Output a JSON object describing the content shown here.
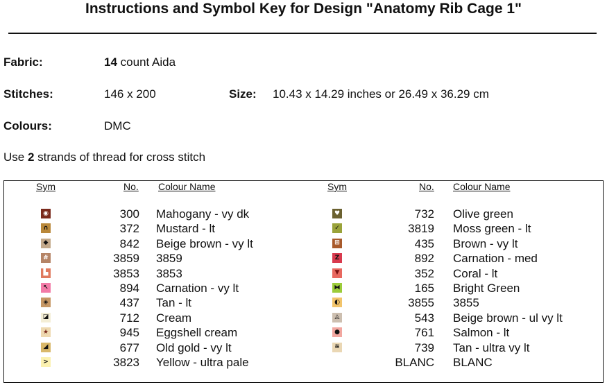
{
  "title": "Instructions and Symbol Key for Design \"Anatomy Rib Cage 1\"",
  "fabric": {
    "label": "Fabric:",
    "count": "14",
    "value": "count Aida"
  },
  "stitches": {
    "label": "Stitches:",
    "value": "146 x 200"
  },
  "size": {
    "label": "Size:",
    "value": "10.43 x 14.29 inches or 26.49 x 36.29 cm"
  },
  "colours": {
    "label": "Colours:",
    "value": "DMC"
  },
  "strands": {
    "pre": "Use",
    "count": "2",
    "post": "strands of thread for cross stitch"
  },
  "headers": {
    "sym": "Sym",
    "no": "No.",
    "name": "Colour Name"
  },
  "left_rows": [
    {
      "color": "#7a2a1c",
      "glyph": "◉",
      "glyph_color": "#ffffff",
      "no": "300",
      "name": "Mahogany -  vy dk"
    },
    {
      "color": "#b9883a",
      "glyph": "∩",
      "glyph_color": "#111111",
      "no": "372",
      "name": "Mustard -  lt"
    },
    {
      "color": "#c3a98b",
      "glyph": "◆",
      "glyph_color": "#111111",
      "no": "842",
      "name": "Beige brown -  vy lt"
    },
    {
      "color": "#b58466",
      "glyph": "#",
      "glyph_color": "#ffffff",
      "no": "3859",
      "name": "3859"
    },
    {
      "color": "#e07a5f",
      "glyph": "▙",
      "glyph_color": "#ffffff",
      "no": "3853",
      "name": "3853"
    },
    {
      "color": "#f27ba7",
      "glyph": "↖",
      "glyph_color": "#111111",
      "no": "894",
      "name": "Carnation -  vy lt"
    },
    {
      "color": "#c69764",
      "glyph": "◈",
      "glyph_color": "#111111",
      "no": "437",
      "name": "Tan -  lt"
    },
    {
      "color": "#f4eed6",
      "glyph": "◪",
      "glyph_color": "#111111",
      "no": "712",
      "name": "Cream"
    },
    {
      "color": "#eed9b0",
      "glyph": "★",
      "glyph_color": "#7a2a1c",
      "no": "945",
      "name": "Eggshell cream"
    },
    {
      "color": "#d9b86a",
      "glyph": "◢",
      "glyph_color": "#111111",
      "no": "677",
      "name": "Old gold -  vy lt"
    },
    {
      "color": "#fbf1b0",
      "glyph": ">",
      "glyph_color": "#111111",
      "no": "3823",
      "name": "Yellow -  ultra pale"
    }
  ],
  "right_rows": [
    {
      "color": "#6b6130",
      "glyph": "♥",
      "glyph_color": "#ffffff",
      "no": "732",
      "name": "Olive green"
    },
    {
      "color": "#9aa33a",
      "glyph": "✓",
      "glyph_color": "#111111",
      "no": "3819",
      "name": "Moss green -  lt"
    },
    {
      "color": "#a85a2c",
      "glyph": "⊞",
      "glyph_color": "#ffffff",
      "no": "435",
      "name": "Brown -  vy lt"
    },
    {
      "color": "#d93a4e",
      "glyph": "Z",
      "glyph_color": "#111111",
      "no": "892",
      "name": "Carnation -  med"
    },
    {
      "color": "#e8685f",
      "glyph": "▼",
      "glyph_color": "#7a1010",
      "no": "352",
      "name": "Coral -  lt"
    },
    {
      "color": "#9ccc3a",
      "glyph": "⧓",
      "glyph_color": "#111111",
      "no": "165",
      "name": "Bright Green"
    },
    {
      "color": "#f2c46b",
      "glyph": "◐",
      "glyph_color": "#111111",
      "no": "3855",
      "name": "3855"
    },
    {
      "color": "#cdbfb0",
      "glyph": "◬",
      "glyph_color": "#111111",
      "no": "543",
      "name": "Beige brown -  ul vy lt"
    },
    {
      "color": "#f2a7a0",
      "glyph": "●",
      "glyph_color": "#111111",
      "no": "761",
      "name": "Salmon -  lt"
    },
    {
      "color": "#ead7b4",
      "glyph": "≋",
      "glyph_color": "#111111",
      "no": "739",
      "name": "Tan -  ultra vy lt"
    },
    {
      "color": "#ffffff",
      "glyph": "",
      "glyph_color": "#111111",
      "no": "BLANC",
      "name": "BLANC"
    }
  ]
}
